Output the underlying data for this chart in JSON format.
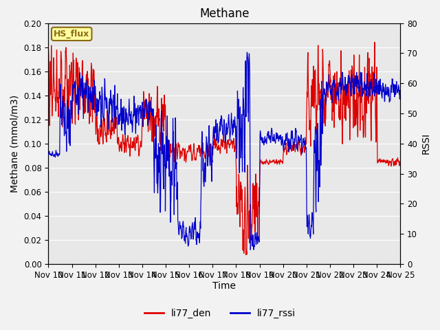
{
  "title": "Methane",
  "xlabel": "Time",
  "ylabel_left": "Methane (mmol/m3)",
  "ylabel_right": "RSSI",
  "ylim_left": [
    0.0,
    0.2
  ],
  "ylim_right": [
    0,
    80
  ],
  "xlim": [
    0,
    15
  ],
  "xtick_labels": [
    "Nov 10",
    "Nov 11",
    "Nov 12",
    "Nov 13",
    "Nov 14",
    "Nov 15",
    "Nov 16",
    "Nov 17",
    "Nov 18",
    "Nov 19",
    "Nov 20",
    "Nov 21",
    "Nov 22",
    "Nov 23",
    "Nov 24",
    "Nov 25"
  ],
  "xtick_positions": [
    0,
    1,
    2,
    3,
    4,
    5,
    6,
    7,
    8,
    9,
    10,
    11,
    12,
    13,
    14,
    15
  ],
  "annotation_text": "HS_flux",
  "annotation_color": "#8B6914",
  "annotation_bg": "#FFFFA0",
  "line_red_color": "#DD0000",
  "line_blue_color": "#0000CC",
  "legend_red_label": "li77_den",
  "legend_blue_label": "li77_rssi",
  "fig_bg_color": "#F2F2F2",
  "plot_bg_color": "#E8E8E8",
  "grid_color": "#FFFFFF",
  "title_fontsize": 12,
  "label_fontsize": 10,
  "tick_fontsize": 8.5,
  "legend_fontsize": 10
}
